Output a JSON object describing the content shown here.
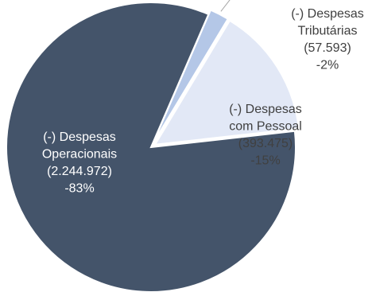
{
  "colors": {
    "operacionais": "#44546a",
    "tributarias": "#b4c7e7",
    "pessoal": "#e2e8f6",
    "separator": "#ffffff",
    "leader": "#a6a6a6",
    "label_light": "#ffffff",
    "label_dark": "#404040"
  },
  "chart_data": {
    "type": "pie",
    "slices": [
      {
        "key": "tributarias",
        "label_lines": [
          "(-) Despesas",
          "Tributárias",
          "(57.593)",
          "-2%"
        ],
        "value": 57593,
        "percent": -2
      },
      {
        "key": "pessoal",
        "label_lines": [
          "(-) Despesas",
          "com Pessoal",
          "(393.475)",
          "-15%"
        ],
        "value": 393475,
        "percent": -15
      },
      {
        "key": "operacionais",
        "label_lines": [
          "(-) Despesas",
          "Operacionais",
          "(2.244.972)",
          "-83%"
        ],
        "value": 2244972,
        "percent": -83
      }
    ],
    "legend": "none"
  }
}
